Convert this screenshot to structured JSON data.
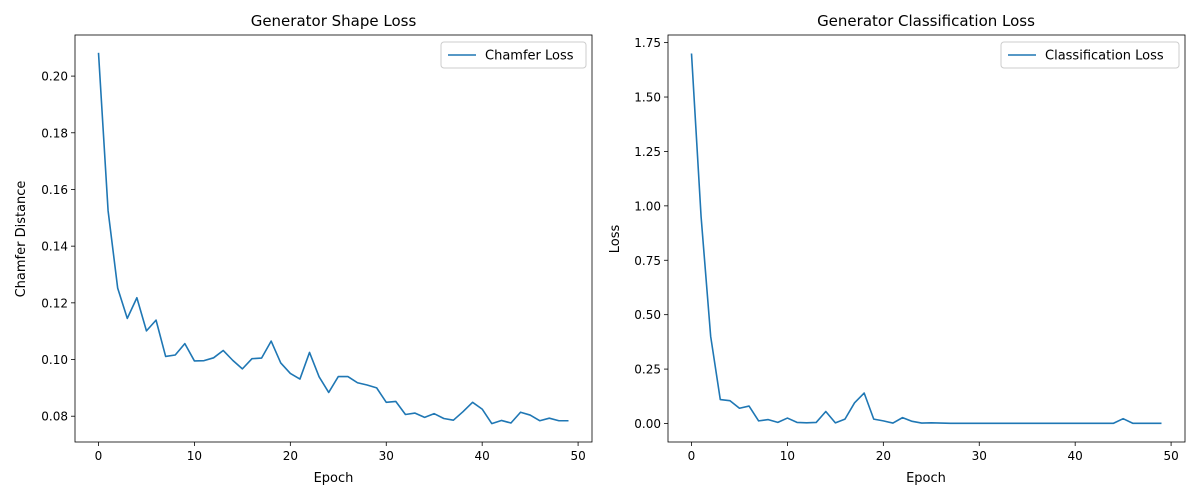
{
  "chart_data": [
    {
      "type": "line",
      "title": "Generator Shape Loss",
      "xlabel": "Epoch",
      "ylabel": "Chamfer Distance",
      "xlim": [
        -2.45,
        51.45
      ],
      "ylim": [
        0.0709,
        0.2145
      ],
      "xticks": [
        0,
        10,
        20,
        30,
        40,
        50
      ],
      "yticks": [
        0.08,
        0.1,
        0.12,
        0.14,
        0.16,
        0.18,
        0.2
      ],
      "xtick_labels": [
        "0",
        "10",
        "20",
        "30",
        "40",
        "50"
      ],
      "ytick_labels": [
        "0.08",
        "0.10",
        "0.12",
        "0.14",
        "0.16",
        "0.18",
        "0.20"
      ],
      "grid": false,
      "legend": "upper right",
      "series": [
        {
          "name": "Chamfer Loss",
          "color": "#1f77b4",
          "x": [
            0,
            1,
            2,
            3,
            4,
            5,
            6,
            7,
            8,
            9,
            10,
            11,
            12,
            13,
            14,
            15,
            16,
            17,
            18,
            19,
            20,
            21,
            22,
            23,
            24,
            25,
            26,
            27,
            28,
            29,
            30,
            31,
            32,
            33,
            34,
            35,
            36,
            37,
            38,
            39,
            40,
            41,
            42,
            43,
            44,
            45,
            46,
            47,
            48,
            49
          ],
          "values": [
            0.2082,
            0.1525,
            0.1252,
            0.1145,
            0.1218,
            0.1101,
            0.1139,
            0.1011,
            0.1016,
            0.1056,
            0.0995,
            0.0996,
            0.1006,
            0.1032,
            0.0997,
            0.0967,
            0.1003,
            0.1005,
            0.1065,
            0.0988,
            0.0951,
            0.0931,
            0.1025,
            0.0939,
            0.0884,
            0.094,
            0.094,
            0.0918,
            0.091,
            0.09,
            0.0849,
            0.0852,
            0.0806,
            0.0811,
            0.0796,
            0.0809,
            0.0792,
            0.0786,
            0.0816,
            0.0849,
            0.0825,
            0.0774,
            0.0785,
            0.0776,
            0.0814,
            0.0804,
            0.0784,
            0.0793,
            0.0784,
            0.0784
          ]
        }
      ]
    },
    {
      "type": "line",
      "title": "Generator Classification Loss",
      "xlabel": "Epoch",
      "ylabel": "Loss",
      "xlim": [
        -2.45,
        51.45
      ],
      "ylim": [
        -0.085,
        1.785
      ],
      "xticks": [
        0,
        10,
        20,
        30,
        40,
        50
      ],
      "yticks": [
        0.0,
        0.25,
        0.5,
        0.75,
        1.0,
        1.25,
        1.5,
        1.75
      ],
      "xtick_labels": [
        "0",
        "10",
        "20",
        "30",
        "40",
        "50"
      ],
      "ytick_labels": [
        "0.00",
        "0.25",
        "0.50",
        "0.75",
        "1.00",
        "1.25",
        "1.50",
        "1.75"
      ],
      "grid": false,
      "legend": "upper right",
      "series": [
        {
          "name": "Classification Loss",
          "color": "#1f77b4",
          "x": [
            0,
            1,
            2,
            3,
            4,
            5,
            6,
            7,
            8,
            9,
            10,
            11,
            12,
            13,
            14,
            15,
            16,
            17,
            18,
            19,
            20,
            21,
            22,
            23,
            24,
            25,
            26,
            27,
            28,
            29,
            30,
            31,
            32,
            33,
            34,
            35,
            36,
            37,
            38,
            39,
            40,
            41,
            42,
            43,
            44,
            45,
            46,
            47,
            48,
            49
          ],
          "values": [
            1.7,
            0.95,
            0.4,
            0.11,
            0.105,
            0.07,
            0.08,
            0.012,
            0.018,
            0.005,
            0.025,
            0.005,
            0.003,
            0.005,
            0.055,
            0.003,
            0.02,
            0.095,
            0.14,
            0.02,
            0.012,
            0.002,
            0.027,
            0.01,
            0.002,
            0.003,
            0.002,
            0.001,
            0.001,
            0.001,
            0.001,
            0.001,
            0.001,
            0.001,
            0.001,
            0.001,
            0.001,
            0.001,
            0.001,
            0.001,
            0.001,
            0.001,
            0.001,
            0.001,
            0.001,
            0.022,
            0.001,
            0.001,
            0.001,
            0.001
          ]
        }
      ]
    }
  ]
}
